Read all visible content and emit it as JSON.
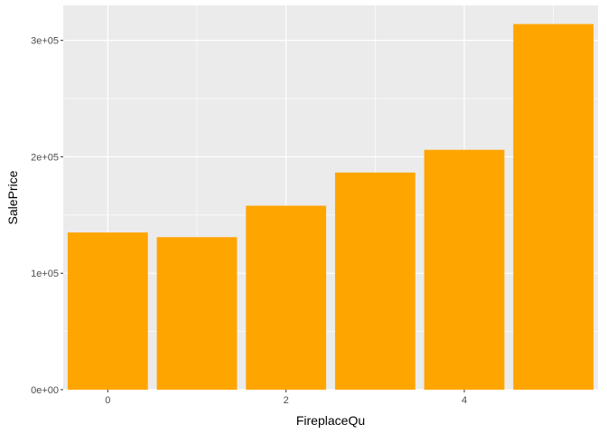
{
  "chart_data": {
    "type": "bar",
    "xlabel": "FireplaceQu",
    "ylabel": "SalePrice",
    "categories": [
      0,
      1,
      2,
      3,
      4,
      5
    ],
    "values": [
      135000,
      131000,
      158000,
      186500,
      206000,
      314000
    ],
    "xlim": [
      -0.5,
      5.5
    ],
    "ylim": [
      0,
      330000
    ],
    "xticks": [
      0,
      2,
      4
    ],
    "xtick_labels": [
      "0",
      "2",
      "4"
    ],
    "yticks": [
      0,
      100000,
      200000,
      300000
    ],
    "ytick_labels": [
      "0e+00",
      "1e+05",
      "2e+05",
      "3e+05"
    ],
    "grid": true,
    "bar_color": "#FFA500",
    "panel_background": "#EBEBEB",
    "grid_color": "#FFFFFF"
  }
}
